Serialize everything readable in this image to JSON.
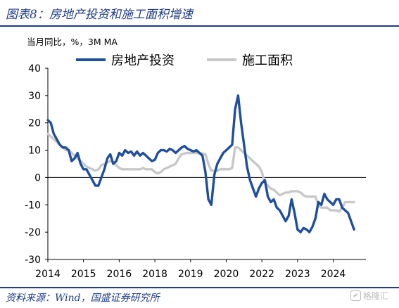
{
  "header": {
    "title": "图表8：房地产投资和施工面积增速"
  },
  "footer": {
    "source": "资料来源：Wind，国盛证券研究所",
    "watermark": "格隆汇"
  },
  "colors": {
    "brand": "#1f3c88",
    "series_investment": "#1f4e9e",
    "series_construction": "#c8c8c8"
  },
  "chart_data": {
    "type": "line",
    "unit_label": "当月同比，%，3M MA",
    "xlabel": "",
    "ylabel": "",
    "x_ticks": [
      "2014",
      "2015",
      "2016",
      "2018",
      "2019",
      "2020",
      "2022",
      "2023",
      "2024"
    ],
    "x_tick_positions": [
      0,
      12,
      24,
      36,
      48,
      60,
      72,
      84,
      96
    ],
    "x_range": [
      0,
      107
    ],
    "ylim": [
      -30,
      40
    ],
    "y_ticks": [
      40,
      30,
      20,
      10,
      0,
      -10,
      -20,
      -30
    ],
    "grid": false,
    "legend_position": "top",
    "series": [
      {
        "name": "房地产投资",
        "values": [
          [
            0,
            21
          ],
          [
            1,
            20
          ],
          [
            2,
            16
          ],
          [
            3,
            14
          ],
          [
            4,
            12
          ],
          [
            5,
            11
          ],
          [
            6,
            11
          ],
          [
            7,
            10
          ],
          [
            8,
            6
          ],
          [
            9,
            7
          ],
          [
            10,
            9
          ],
          [
            11,
            5
          ],
          [
            12,
            3
          ],
          [
            13,
            3
          ],
          [
            14,
            1
          ],
          [
            15,
            -1
          ],
          [
            16,
            -3
          ],
          [
            17,
            -3
          ],
          [
            18,
            0
          ],
          [
            19,
            3
          ],
          [
            20,
            7
          ],
          [
            21,
            8.5
          ],
          [
            22,
            5
          ],
          [
            23,
            6
          ],
          [
            24,
            9
          ],
          [
            25,
            8
          ],
          [
            26,
            10
          ],
          [
            27,
            9
          ],
          [
            28,
            9.5
          ],
          [
            29,
            8
          ],
          [
            30,
            9.5
          ],
          [
            31,
            8
          ],
          [
            32,
            9
          ],
          [
            33,
            8
          ],
          [
            34,
            7
          ],
          [
            35,
            6
          ],
          [
            36,
            6.5
          ],
          [
            37,
            9
          ],
          [
            38,
            10
          ],
          [
            39,
            10
          ],
          [
            40,
            9.5
          ],
          [
            41,
            10.5
          ],
          [
            42,
            10
          ],
          [
            43,
            9
          ],
          [
            44,
            10
          ],
          [
            45,
            11
          ],
          [
            46,
            11.5
          ],
          [
            47,
            10.5
          ],
          [
            48,
            10
          ],
          [
            49,
            9.5
          ],
          [
            50,
            10
          ],
          [
            51,
            9
          ],
          [
            52,
            8
          ],
          [
            53,
            2
          ],
          [
            54,
            -8
          ],
          [
            55,
            -10
          ],
          [
            56,
            1
          ],
          [
            57,
            5
          ],
          [
            58,
            7
          ],
          [
            59,
            9
          ],
          [
            60,
            10
          ],
          [
            61,
            11
          ],
          [
            62,
            12
          ],
          [
            63,
            25
          ],
          [
            64,
            30
          ],
          [
            65,
            20
          ],
          [
            66,
            12
          ],
          [
            67,
            4
          ],
          [
            68,
            -1
          ],
          [
            69,
            -4
          ],
          [
            70,
            -7
          ],
          [
            71,
            -4
          ],
          [
            72,
            -2
          ],
          [
            73,
            -1
          ],
          [
            74,
            -7
          ],
          [
            75,
            -9
          ],
          [
            76,
            -8
          ],
          [
            77,
            -11
          ],
          [
            78,
            -12
          ],
          [
            79,
            -14
          ],
          [
            80,
            -16
          ],
          [
            81,
            -14
          ],
          [
            82,
            -8
          ],
          [
            83,
            -13
          ],
          [
            84,
            -19
          ],
          [
            85,
            -20
          ],
          [
            86,
            -18.5
          ],
          [
            87,
            -19
          ],
          [
            88,
            -20
          ],
          [
            89,
            -18
          ],
          [
            90,
            -15
          ],
          [
            91,
            -9
          ],
          [
            92,
            -10
          ],
          [
            93,
            -6
          ],
          [
            94,
            -8
          ],
          [
            95,
            -9
          ],
          [
            96,
            -10
          ],
          [
            97,
            -8
          ],
          [
            98,
            -8
          ],
          [
            99,
            -11
          ],
          [
            100,
            -12
          ],
          [
            101,
            -13
          ],
          [
            102,
            -16
          ],
          [
            103,
            -19
          ]
        ]
      },
      {
        "name": "施工面积",
        "values": [
          [
            0,
            16
          ],
          [
            1,
            15
          ],
          [
            2,
            14
          ],
          [
            3,
            13
          ],
          [
            4,
            12
          ],
          [
            5,
            11
          ],
          [
            6,
            10
          ],
          [
            7,
            10
          ],
          [
            8,
            9
          ],
          [
            9,
            8
          ],
          [
            10,
            7
          ],
          [
            11,
            6
          ],
          [
            12,
            5
          ],
          [
            13,
            4
          ],
          [
            14,
            3.5
          ],
          [
            15,
            3
          ],
          [
            16,
            2.5
          ],
          [
            17,
            3
          ],
          [
            18,
            4.5
          ],
          [
            19,
            5
          ],
          [
            20,
            5.5
          ],
          [
            21,
            6
          ],
          [
            22,
            5.5
          ],
          [
            23,
            4.5
          ],
          [
            24,
            3.5
          ],
          [
            25,
            3
          ],
          [
            26,
            3
          ],
          [
            27,
            3
          ],
          [
            28,
            3
          ],
          [
            29,
            3
          ],
          [
            30,
            3
          ],
          [
            31,
            3
          ],
          [
            32,
            3.5
          ],
          [
            33,
            3
          ],
          [
            34,
            3
          ],
          [
            35,
            3
          ],
          [
            36,
            2
          ],
          [
            37,
            1.5
          ],
          [
            38,
            2
          ],
          [
            39,
            3
          ],
          [
            40,
            3.5
          ],
          [
            41,
            4
          ],
          [
            42,
            4.5
          ],
          [
            43,
            5
          ],
          [
            44,
            7
          ],
          [
            45,
            8.5
          ],
          [
            46,
            8.8
          ],
          [
            47,
            9
          ],
          [
            48,
            9
          ],
          [
            49,
            9
          ],
          [
            50,
            9
          ],
          [
            51,
            9
          ],
          [
            52,
            8.8
          ],
          [
            53,
            8.5
          ],
          [
            54,
            5
          ],
          [
            55,
            2.5
          ],
          [
            56,
            2.5
          ],
          [
            57,
            2.5
          ],
          [
            58,
            3
          ],
          [
            59,
            3
          ],
          [
            60,
            3
          ],
          [
            61,
            3
          ],
          [
            62,
            3.5
          ],
          [
            63,
            11
          ],
          [
            64,
            11
          ],
          [
            65,
            10
          ],
          [
            66,
            9
          ],
          [
            67,
            8
          ],
          [
            68,
            7
          ],
          [
            69,
            6
          ],
          [
            70,
            5
          ],
          [
            71,
            4
          ],
          [
            72,
            2
          ],
          [
            73,
            -2
          ],
          [
            74,
            -3
          ],
          [
            75,
            -4
          ],
          [
            76,
            -4.5
          ],
          [
            77,
            -5.5
          ],
          [
            78,
            -6.5
          ],
          [
            79,
            -6
          ],
          [
            80,
            -5.5
          ],
          [
            81,
            -5.5
          ],
          [
            82,
            -5
          ],
          [
            83,
            -5
          ],
          [
            84,
            -5
          ],
          [
            85,
            -5.5
          ],
          [
            86,
            -6.5
          ],
          [
            87,
            -7
          ],
          [
            88,
            -7
          ],
          [
            89,
            -7
          ],
          [
            90,
            -7
          ],
          [
            91,
            -10
          ],
          [
            92,
            -11
          ],
          [
            93,
            -11
          ],
          [
            94,
            -11
          ],
          [
            95,
            -12
          ],
          [
            96,
            -12
          ],
          [
            97,
            -12
          ],
          [
            98,
            -12.5
          ],
          [
            99,
            -11
          ],
          [
            100,
            -9
          ],
          [
            101,
            -9
          ],
          [
            102,
            -9
          ],
          [
            103,
            -9
          ]
        ]
      }
    ]
  }
}
